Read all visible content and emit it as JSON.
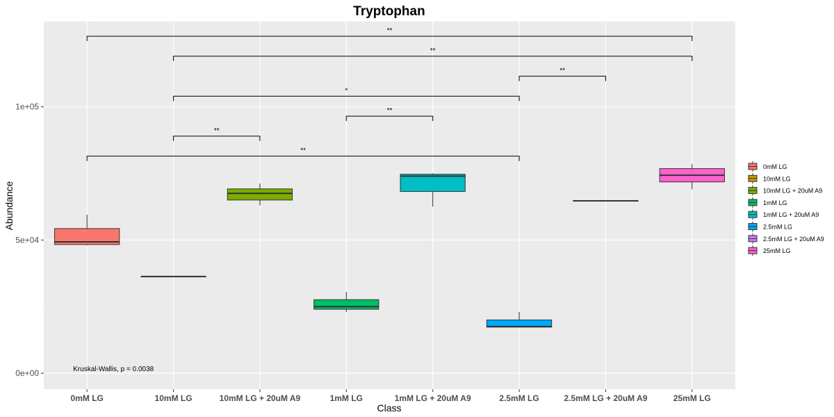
{
  "chart_data": {
    "type": "boxplot",
    "title": "Tryptophan",
    "xlabel": "Class",
    "ylabel": "Abundance",
    "ylim": [
      -6000,
      132000
    ],
    "y_ticks": [
      {
        "value": 0,
        "label": "0e+00"
      },
      {
        "value": 50000,
        "label": "5e+04"
      },
      {
        "value": 100000,
        "label": "1e+05"
      }
    ],
    "categories": [
      "0mM LG",
      "10mM LG",
      "10mM LG + 20uM A9",
      "1mM LG",
      "1mM LG + 20uM A9",
      "2.5mM LG",
      "2.5mM LG + 20uM A9",
      "25mM LG"
    ],
    "boxes": [
      {
        "group": "0mM LG",
        "color": "#F8766D",
        "min": 48000,
        "q1": 48300,
        "median": 49300,
        "q3": 54300,
        "max": 59500
      },
      {
        "group": "10mM LG",
        "color": "#CD9600",
        "min": 36200,
        "q1": 36200,
        "median": 36300,
        "q3": 36400,
        "max": 36400
      },
      {
        "group": "10mM LG + 20uM A9",
        "color": "#7CAE00",
        "min": 63000,
        "q1": 65000,
        "median": 67500,
        "q3": 69200,
        "max": 71200
      },
      {
        "group": "1mM LG",
        "color": "#00BE67",
        "min": 23000,
        "q1": 24000,
        "median": 25000,
        "q3": 27600,
        "max": 30500
      },
      {
        "group": "1mM LG + 20uM A9",
        "color": "#00BFC4",
        "min": 62500,
        "q1": 68200,
        "median": 74000,
        "q3": 74700,
        "max": 75000
      },
      {
        "group": "2.5mM LG",
        "color": "#00A9FF",
        "min": 17200,
        "q1": 17300,
        "median": 17500,
        "q3": 20000,
        "max": 23000
      },
      {
        "group": "2.5mM LG + 20uM A9",
        "color": "#C77CFF",
        "min": 64600,
        "q1": 64600,
        "median": 64700,
        "q3": 64800,
        "max": 64800
      },
      {
        "group": "25mM LG",
        "color": "#FF61CC",
        "min": 69000,
        "q1": 71800,
        "median": 74300,
        "q3": 76800,
        "max": 78500
      }
    ],
    "significance": [
      {
        "from": "0mM LG",
        "to": "25mM LG",
        "y": 126500,
        "label": "**"
      },
      {
        "from": "10mM LG",
        "to": "25mM LG",
        "y": 119000,
        "label": "**"
      },
      {
        "from": "2.5mM LG",
        "to": "2.5mM LG + 20uM A9",
        "y": 111500,
        "label": "**"
      },
      {
        "from": "10mM LG",
        "to": "2.5mM LG",
        "y": 104000,
        "label": "*"
      },
      {
        "from": "1mM LG",
        "to": "1mM LG + 20uM A9",
        "y": 96500,
        "label": "**"
      },
      {
        "from": "10mM LG",
        "to": "10mM LG + 20uM A9",
        "y": 89000,
        "label": "**"
      },
      {
        "from": "0mM LG",
        "to": "2.5mM LG",
        "y": 81500,
        "label": "**"
      }
    ],
    "annotation": {
      "text": "Kruskal-Wallis, p = 0.0038",
      "x": "0mM LG",
      "y": 1000
    },
    "legend": {
      "position": "right",
      "title": ""
    },
    "grid": true,
    "theme": "ggplot2 grey"
  }
}
